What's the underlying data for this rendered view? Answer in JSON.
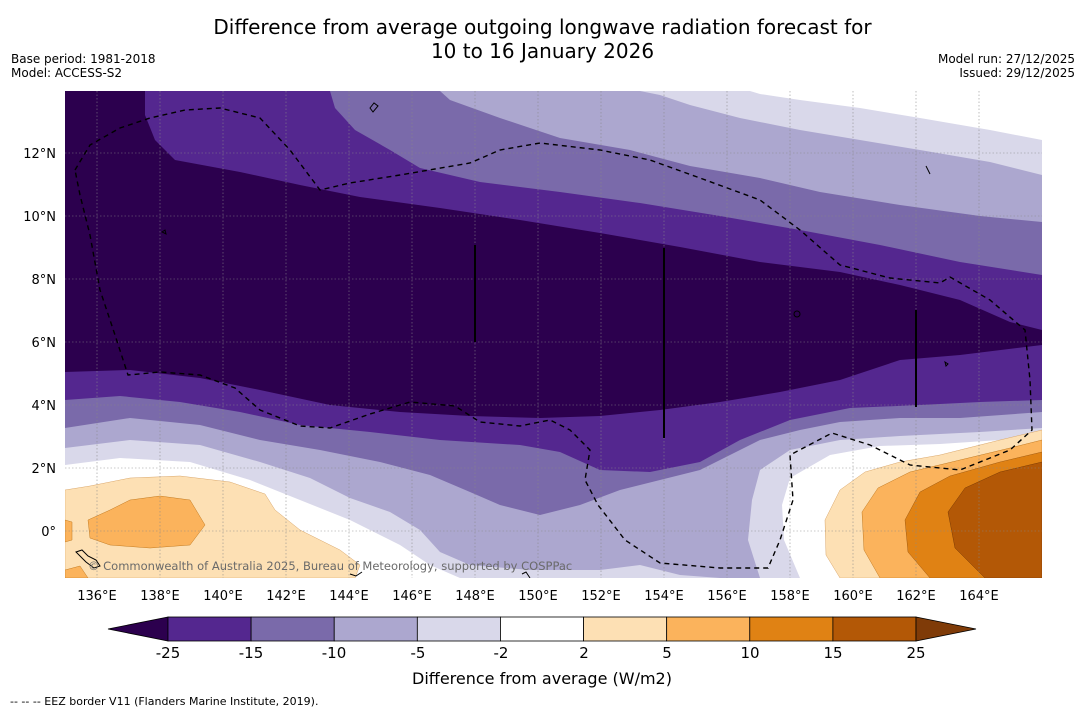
{
  "title": {
    "line1": "Difference from average outgoing longwave radiation forecast for",
    "line2": "10 to 16 January 2026"
  },
  "meta": {
    "base_period": "Base period: 1981-2018",
    "model": "Model: ACCESS-S2",
    "model_run": "Model run: 27/12/2025",
    "issued": "Issued: 29/12/2025"
  },
  "map": {
    "lat_labels": [
      "12°N",
      "10°N",
      "8°N",
      "6°N",
      "4°N",
      "2°N",
      "0°"
    ],
    "lon_labels": [
      "136°E",
      "138°E",
      "140°E",
      "142°E",
      "144°E",
      "146°E",
      "148°E",
      "150°E",
      "152°E",
      "154°E",
      "156°E",
      "158°E",
      "160°E",
      "162°E",
      "164°E"
    ],
    "copyright": "© Commonwealth of Australia 2025, Bureau of Meteorology, supported by COSPPac"
  },
  "colorbar": {
    "ticks": [
      "-25",
      "-15",
      "-10",
      "-5",
      "-2",
      "2",
      "5",
      "10",
      "15",
      "25"
    ],
    "colors": [
      "#2c004e",
      "#54278f",
      "#7a6aaa",
      "#aca7cf",
      "#d9d8ea",
      "#ffffff",
      "#fde0b4",
      "#fbb35c",
      "#e08214",
      "#b35806",
      "#7f3b08"
    ],
    "label": "Difference from average (W/m2)"
  },
  "legend": {
    "eez": "--  --  -- EEZ border V11 (Flanders Marine Institute, 2019)."
  }
}
